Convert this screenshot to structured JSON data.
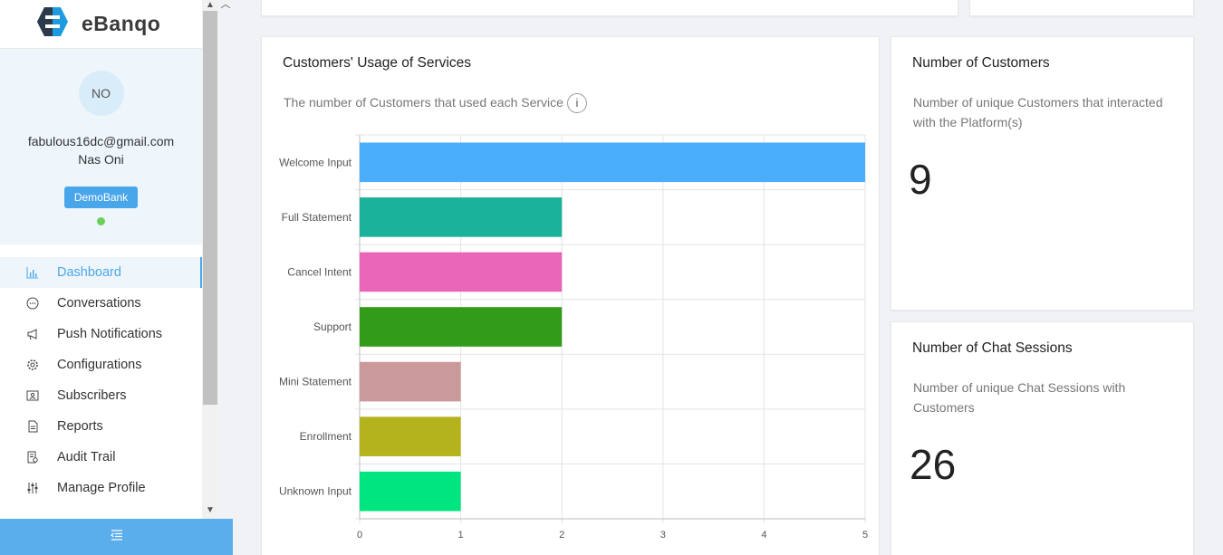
{
  "app": {
    "name": "eBanqo"
  },
  "profile": {
    "initials": "NO",
    "email": "fabulous16dc@gmail.com",
    "name": "Nas Oni",
    "bank": "DemoBank",
    "status_color": "#6cd15b"
  },
  "menu": {
    "items": [
      {
        "label": "Dashboard",
        "icon": "bar-chart-icon",
        "active": true
      },
      {
        "label": "Conversations",
        "icon": "chat-icon",
        "active": false
      },
      {
        "label": "Push Notifications",
        "icon": "megaphone-icon",
        "active": false
      },
      {
        "label": "Configurations",
        "icon": "gear-icon",
        "active": false
      },
      {
        "label": "Subscribers",
        "icon": "contact-card-icon",
        "active": false
      },
      {
        "label": "Reports",
        "icon": "document-icon",
        "active": false
      },
      {
        "label": "Audit Trail",
        "icon": "audit-icon",
        "active": false
      },
      {
        "label": "Manage Profile",
        "icon": "sliders-icon",
        "active": false
      }
    ]
  },
  "usage_card": {
    "title": "Customers' Usage of Services",
    "subtitle": "The number of Customers that used each Service",
    "info_label": "i"
  },
  "customers_card": {
    "title": "Number of Customers",
    "subtitle": "Number of unique Customers that interacted with the Platform(s)",
    "value": "9"
  },
  "sessions_card": {
    "title": "Number of Chat Sessions",
    "subtitle": "Number of unique Chat Sessions with Customers",
    "value": "26"
  },
  "colors": {
    "accent": "#4aa6ea",
    "sidebar_footer": "#5aaeec"
  },
  "chart_data": {
    "type": "bar",
    "orientation": "horizontal",
    "categories": [
      "Welcome Input",
      "Full Statement",
      "Cancel Intent",
      "Support",
      "Mini Statement",
      "Enrollment",
      "Unknown Input"
    ],
    "values": [
      5,
      2,
      2,
      2,
      1,
      1,
      1
    ],
    "colors": [
      "#4aaefc",
      "#1ab29a",
      "#e865b8",
      "#339b1a",
      "#c99a99",
      "#b4b31e",
      "#00e57e"
    ],
    "xlim": [
      0,
      5
    ],
    "xticks": [
      "0",
      "1",
      "2",
      "3",
      "4",
      "5"
    ],
    "grid": true
  }
}
